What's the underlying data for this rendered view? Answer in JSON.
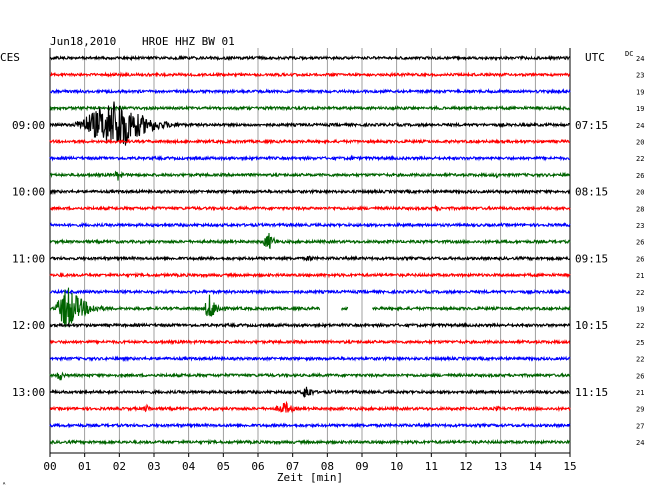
{
  "header": {
    "date": "Jun18,2010",
    "station": "HROE HHZ BW 01",
    "left_tz": "CES",
    "right_tz": "UTC",
    "dc_label": "DC",
    "corner_mark": "ᴬ"
  },
  "chart_data": {
    "type": "line",
    "title": "Jun18,2010   HROE HHZ BW 01",
    "xlabel": "Zeit [min]",
    "xlim": [
      0,
      15
    ],
    "x_ticks": [
      "00",
      "01",
      "02",
      "03",
      "04",
      "05",
      "06",
      "07",
      "08",
      "09",
      "10",
      "11",
      "12",
      "13",
      "14",
      "15"
    ],
    "row_colors": [
      "#000000",
      "#ff0000",
      "#0000ff",
      "#006400"
    ],
    "left_time_labels": [
      {
        "row": 4,
        "label": "09:00"
      },
      {
        "row": 8,
        "label": "10:00"
      },
      {
        "row": 12,
        "label": "11:00"
      },
      {
        "row": 16,
        "label": "12:00"
      },
      {
        "row": 20,
        "label": "13:00"
      }
    ],
    "right_time_labels": [
      {
        "row": 4,
        "label": "07:15"
      },
      {
        "row": 8,
        "label": "08:15"
      },
      {
        "row": 12,
        "label": "09:15"
      },
      {
        "row": 16,
        "label": "10:15"
      },
      {
        "row": 20,
        "label": "11:15"
      }
    ],
    "dc_offsets": [
      24,
      23,
      19,
      19,
      24,
      20,
      22,
      26,
      20,
      28,
      23,
      26,
      26,
      21,
      22,
      19,
      22,
      25,
      22,
      26,
      21,
      29,
      27,
      24
    ],
    "events": [
      {
        "row": 4,
        "start_min": 0.6,
        "end_min": 3.9,
        "peak_min": 2.0,
        "amplitude": 28
      },
      {
        "row": 7,
        "start_min": 0.7,
        "end_min": 1.0,
        "peak_min": 0.8,
        "amplitude": 3
      },
      {
        "row": 7,
        "start_min": 1.8,
        "end_min": 2.2,
        "peak_min": 2.0,
        "amplitude": 7
      },
      {
        "row": 7,
        "start_min": 12.7,
        "end_min": 13.1,
        "peak_min": 12.9,
        "amplitude": 3
      },
      {
        "row": 6,
        "start_min": 8.6,
        "end_min": 8.9,
        "peak_min": 8.7,
        "amplitude": 3
      },
      {
        "row": 9,
        "start_min": 10.9,
        "end_min": 11.6,
        "peak_min": 11.2,
        "amplitude": 3
      },
      {
        "row": 11,
        "start_min": 6.1,
        "end_min": 6.8,
        "peak_min": 6.3,
        "amplitude": 10
      },
      {
        "row": 12,
        "start_min": 7.3,
        "end_min": 7.8,
        "peak_min": 7.5,
        "amplitude": 4
      },
      {
        "row": 13,
        "start_min": 0.2,
        "end_min": 0.7,
        "peak_min": 0.3,
        "amplitude": 3
      },
      {
        "row": 15,
        "start_min": 0.1,
        "end_min": 1.8,
        "peak_min": 0.5,
        "amplitude": 24
      },
      {
        "row": 15,
        "start_min": 4.4,
        "end_min": 5.3,
        "peak_min": 4.6,
        "amplitude": 14
      },
      {
        "row": 19,
        "start_min": 0.1,
        "end_min": 0.6,
        "peak_min": 0.3,
        "amplitude": 6
      },
      {
        "row": 20,
        "start_min": 7.2,
        "end_min": 7.9,
        "peak_min": 7.4,
        "amplitude": 8
      },
      {
        "row": 21,
        "start_min": 2.6,
        "end_min": 3.2,
        "peak_min": 2.8,
        "amplitude": 4
      },
      {
        "row": 21,
        "start_min": 6.4,
        "end_min": 7.4,
        "peak_min": 6.8,
        "amplitude": 7
      },
      {
        "row": 21,
        "start_min": 12.7,
        "end_min": 13.2,
        "peak_min": 12.9,
        "amplitude": 3
      }
    ],
    "gaps": [
      {
        "row": 15,
        "start_min": 7.8,
        "end_min": 8.4
      },
      {
        "row": 15,
        "start_min": 8.6,
        "end_min": 9.3
      }
    ]
  }
}
